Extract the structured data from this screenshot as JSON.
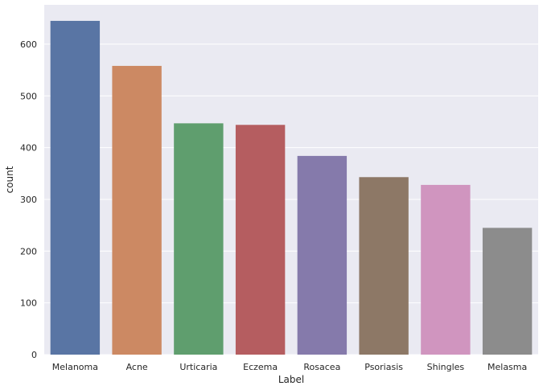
{
  "chart_data": {
    "type": "bar",
    "categories": [
      "Melanoma",
      "Acne",
      "Urticaria",
      "Eczema",
      "Rosacea",
      "Psoriasis",
      "Shingles",
      "Melasma"
    ],
    "values": [
      645,
      558,
      447,
      444,
      384,
      343,
      328,
      245
    ],
    "xlabel": "Label",
    "ylabel": "count",
    "ylim": [
      0,
      676
    ],
    "yticks": [
      0,
      100,
      200,
      300,
      400,
      500,
      600
    ],
    "grid": true,
    "background": "#eaeaf2",
    "grid_color": "#ffffff",
    "bar_colors": [
      "#5975a4",
      "#cc8963",
      "#5f9e6e",
      "#b55d60",
      "#857aab",
      "#8d7866",
      "#d095bf",
      "#8c8c8c"
    ]
  }
}
